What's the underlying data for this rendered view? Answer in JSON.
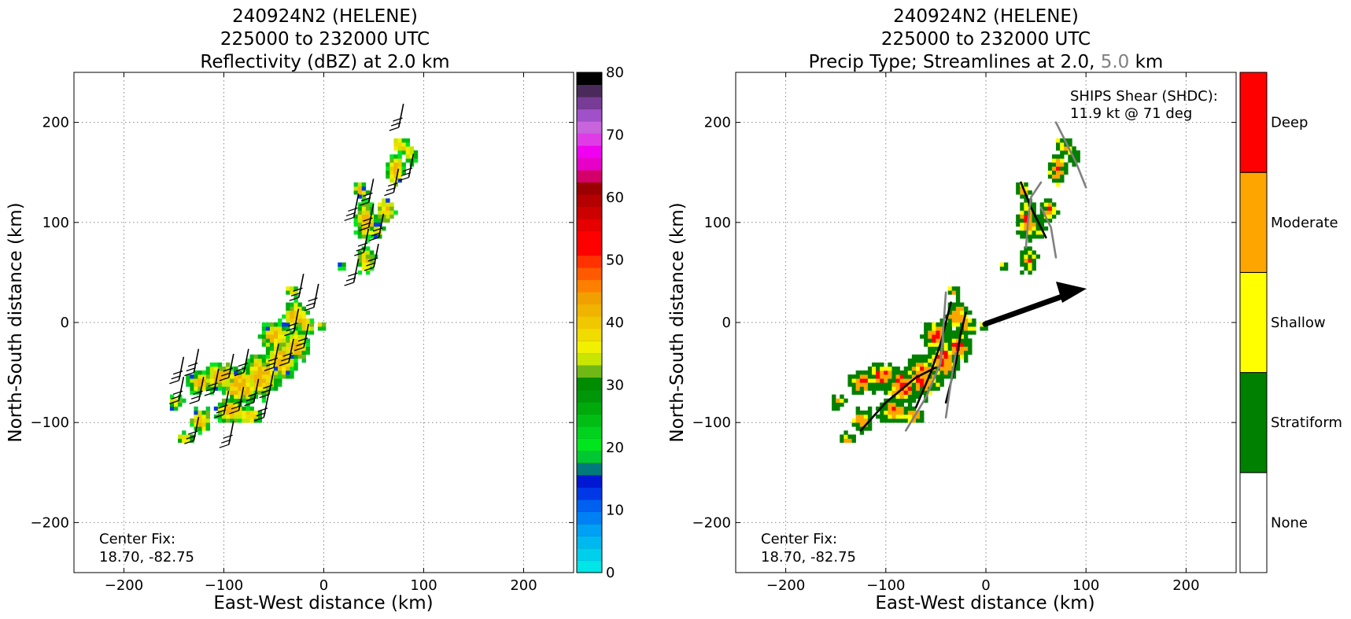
{
  "chart_data": [
    {
      "type": "heatmap",
      "title_lines": [
        "240924N2 (HELENE)",
        "225000 to 232000 UTC",
        "Reflectivity (dBZ) at 2.0 km"
      ],
      "xlabel": "East-West distance (km)",
      "ylabel": "North-South distance (km)",
      "xlim": [
        -250,
        250
      ],
      "ylim": [
        -250,
        250
      ],
      "xticks": [
        -200,
        -100,
        0,
        100,
        200
      ],
      "yticks": [
        -200,
        -100,
        0,
        100,
        200
      ],
      "grid": true,
      "annotation": [
        "Center Fix:",
        "18.70, -82.75"
      ],
      "colorbar": {
        "label_values": [
          0,
          10,
          20,
          30,
          40,
          50,
          60,
          70,
          80
        ],
        "min": 0,
        "max": 80,
        "colors": [
          "#00e5e5",
          "#00cfeb",
          "#00b8f0",
          "#00a0f5",
          "#0080f5",
          "#0060f0",
          "#0038e6",
          "#0018d4",
          "#007a7a",
          "#00c832",
          "#00e61e",
          "#00d21e",
          "#00be14",
          "#00aa0a",
          "#00960a",
          "#008c00",
          "#70b814",
          "#c8e600",
          "#f0f000",
          "#f0dc00",
          "#f0c800",
          "#f0b400",
          "#f0a000",
          "#ff8000",
          "#ff5a00",
          "#ff3200",
          "#ff0000",
          "#ff0000",
          "#e60000",
          "#cd0000",
          "#b40000",
          "#9b0000",
          "#d4006a",
          "#e600c8",
          "#f000f0",
          "#e03ce6",
          "#c864dc",
          "#a050c8",
          "#783c96",
          "#4a2a5a",
          "#000000"
        ]
      }
    },
    {
      "type": "heatmap",
      "title_lines": [
        "240924N2 (HELENE)",
        "225000 to 232000 UTC"
      ],
      "title_line3_parts": [
        "Precip Type; Streamlines at 2.0, ",
        "5.0",
        " km"
      ],
      "xlabel": "East-West distance (km)",
      "ylabel": "North-South distance (km)",
      "xlim": [
        -250,
        250
      ],
      "ylim": [
        -250,
        250
      ],
      "xticks": [
        -200,
        -100,
        0,
        100,
        200
      ],
      "yticks": [
        -200,
        -100,
        0,
        100,
        200
      ],
      "grid": true,
      "annotation": [
        "Center Fix:",
        "18.70, -82.75"
      ],
      "shear_text": [
        "SHIPS Shear (SHDC):",
        "11.9 kt @ 71 deg"
      ],
      "shear_vector": {
        "speed_kt": 11.9,
        "direction_deg": 71
      },
      "categories": [
        {
          "name": "None",
          "color": "#ffffff"
        },
        {
          "name": "Stratiform",
          "color": "#008000"
        },
        {
          "name": "Shallow",
          "color": "#ffff00"
        },
        {
          "name": "Moderate",
          "color": "#ffa500"
        },
        {
          "name": "Deep",
          "color": "#ff0000"
        }
      ],
      "streamline_colors": {
        "2.0": "#000000",
        "5.0": "#808080"
      }
    }
  ]
}
